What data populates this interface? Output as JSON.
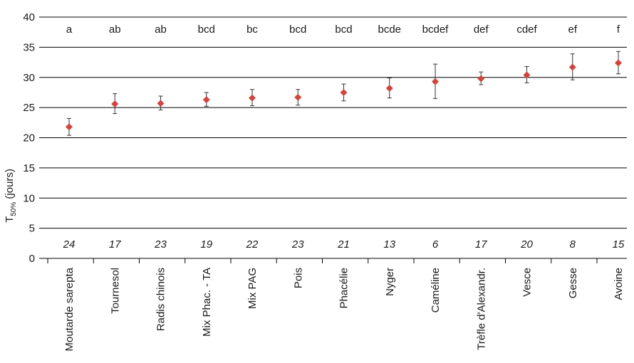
{
  "chart_data": {
    "type": "scatter",
    "ylabel": {
      "main": "T",
      "sub": "50%",
      "suffix": " (jours)"
    },
    "ylim": [
      0,
      40
    ],
    "yticks": [
      0,
      5,
      10,
      15,
      20,
      25,
      30,
      35,
      40
    ],
    "grid": true,
    "marker_color": "#d0463f",
    "categories": [
      "Moutarde sarepta",
      "Tournesol",
      "Radis chinois",
      "Mix Phac. - TA",
      "Mix PAG",
      "Pois",
      "Phacélie",
      "Nyger",
      "Caméline",
      "Trèfle d'Alexandr.",
      "Vesce",
      "Gesse",
      "Avoine"
    ],
    "values": [
      21.8,
      25.6,
      25.7,
      26.3,
      26.6,
      26.7,
      27.5,
      28.2,
      29.3,
      29.8,
      30.4,
      31.7,
      32.4
    ],
    "error_low": [
      20.4,
      24.0,
      24.6,
      25.2,
      25.3,
      25.4,
      26.1,
      26.6,
      26.5,
      28.8,
      29.1,
      29.6,
      30.6
    ],
    "error_high": [
      23.2,
      27.3,
      26.9,
      27.5,
      28.0,
      28.0,
      28.9,
      29.9,
      32.2,
      30.9,
      31.8,
      33.9,
      34.3
    ],
    "significance_letters": [
      "a",
      "ab",
      "ab",
      "bcd",
      "bc",
      "bcd",
      "bcd",
      "bcde",
      "bcdef",
      "def",
      "cdef",
      "ef",
      "f"
    ],
    "counts": [
      "24",
      "17",
      "23",
      "19",
      "22",
      "23",
      "21",
      "13",
      "6",
      "17",
      "20",
      "8",
      "15"
    ]
  }
}
